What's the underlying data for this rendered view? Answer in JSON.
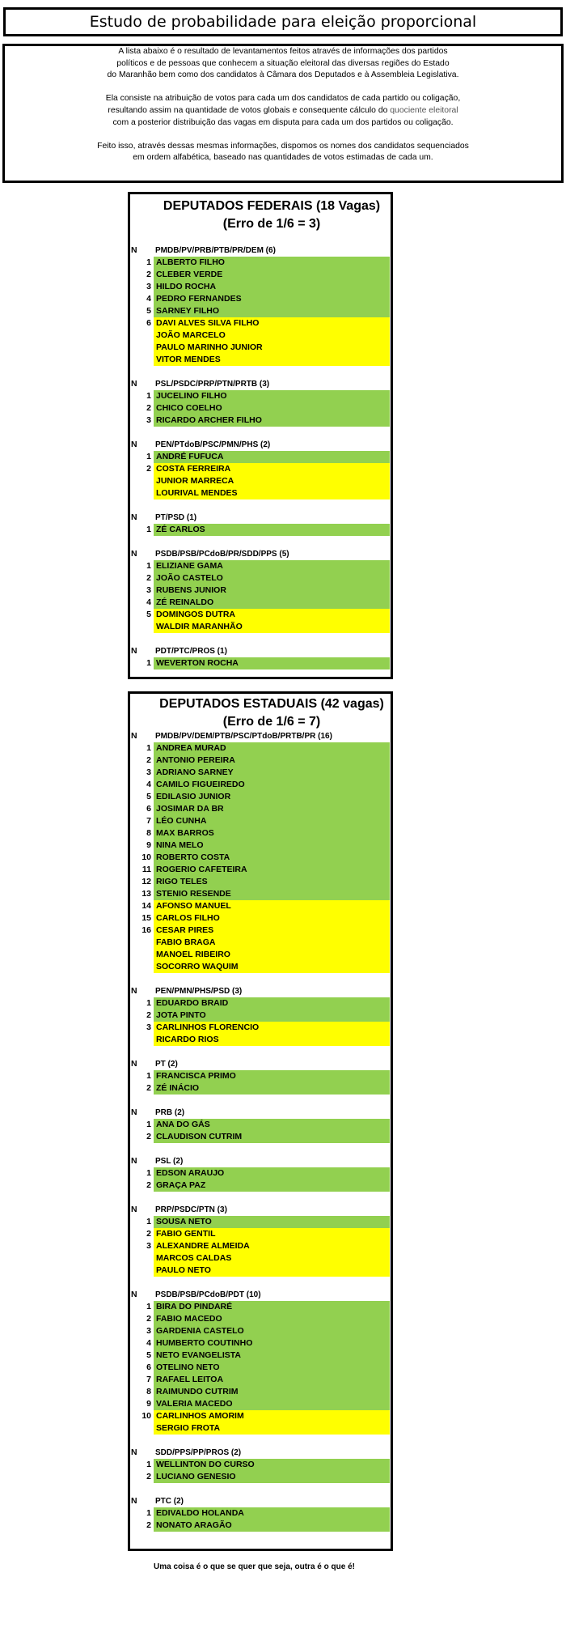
{
  "title": "Estudo de probabilidade para eleição proporcional",
  "intro": {
    "p1": [
      "A lista abaixo é o resultado de levantamentos feitos através de informações dos partidos",
      "políticos e de pessoas que conhecem a situação eleitoral das diversas regiões do Estado",
      "do Maranhão bem como dos candidatos à Câmara dos Deputados e à Assembleia Legislativa."
    ],
    "p2a": "Ela consiste na atribuição de votos para cada um dos candidatos de cada partido ou coligação,",
    "p2b": "resultando assim na quantidade de votos globais e consequente cálculo do ",
    "p2link": "quociente eleitoral",
    "p2c": "com a posterior distribuição das vagas em disputa para cada um dos partidos ou coligação.",
    "p3": [
      "Feito isso, através dessas mesmas informações, dispomos os nomes dos candidatos sequenciados",
      "em ordem alfabética, baseado nas quantidades de votos estimadas de cada um."
    ]
  },
  "colors": {
    "elected": "#92d050",
    "possible": "#ffff00"
  },
  "sections": [
    {
      "title": "DEPUTADOS FEDERAIS (18 Vagas)",
      "subtitle": "(Erro de 1/6 = 3)",
      "groups": [
        {
          "n": "N",
          "party": "PMDB/PV/PRB/PTB/PR/DEM (6)",
          "rows": [
            {
              "num": "1",
              "name": "ALBERTO FILHO",
              "status": "green"
            },
            {
              "num": "2",
              "name": "CLEBER VERDE",
              "status": "green"
            },
            {
              "num": "3",
              "name": "HILDO ROCHA",
              "status": "green"
            },
            {
              "num": "4",
              "name": "PEDRO FERNANDES",
              "status": "green"
            },
            {
              "num": "5",
              "name": "SARNEY FILHO",
              "status": "green"
            },
            {
              "num": "6",
              "name": "DAVI ALVES SILVA FILHO",
              "status": "yellow"
            },
            {
              "num": "",
              "name": "JOÃO MARCELO",
              "status": "yellow"
            },
            {
              "num": "",
              "name": "PAULO MARINHO JUNIOR",
              "status": "yellow"
            },
            {
              "num": "",
              "name": "VITOR MENDES",
              "status": "yellow"
            }
          ]
        },
        {
          "n": "N",
          "party": "PSL/PSDC/PRP/PTN/PRTB (3)",
          "rows": [
            {
              "num": "1",
              "name": "JUCELINO FILHO",
              "status": "green"
            },
            {
              "num": "2",
              "name": "CHICO COELHO",
              "status": "green"
            },
            {
              "num": "3",
              "name": "RICARDO ARCHER FILHO",
              "status": "green"
            }
          ]
        },
        {
          "n": "N",
          "party": "PEN/PTdoB/PSC/PMN/PHS (2)",
          "rows": [
            {
              "num": "1",
              "name": "ANDRÉ FUFUCA",
              "status": "green"
            },
            {
              "num": "2",
              "name": "COSTA FERREIRA",
              "status": "yellow"
            },
            {
              "num": "",
              "name": "JUNIOR MARRECA",
              "status": "yellow"
            },
            {
              "num": "",
              "name": "LOURIVAL MENDES",
              "status": "yellow"
            }
          ]
        },
        {
          "n": "N",
          "party": "PT/PSD (1)",
          "rows": [
            {
              "num": "1",
              "name": "ZÉ CARLOS",
              "status": "green"
            }
          ]
        },
        {
          "n": "N",
          "party": "PSDB/PSB/PCdoB/PR/SDD/PPS (5)",
          "rows": [
            {
              "num": "1",
              "name": "ELIZIANE GAMA",
              "status": "green"
            },
            {
              "num": "2",
              "name": "JOÃO CASTELO",
              "status": "green"
            },
            {
              "num": "3",
              "name": "RUBENS JUNIOR",
              "status": "green"
            },
            {
              "num": "4",
              "name": "ZÉ REINALDO",
              "status": "green"
            },
            {
              "num": "5",
              "name": "DOMINGOS DUTRA",
              "status": "yellow"
            },
            {
              "num": "",
              "name": "WALDIR MARANHÃO",
              "status": "yellow"
            }
          ]
        },
        {
          "n": "N",
          "party": "PDT/PTC/PROS (1)",
          "rows": [
            {
              "num": "1",
              "name": "WEVERTON ROCHA",
              "status": "green"
            }
          ]
        }
      ]
    },
    {
      "title": "DEPUTADOS ESTADUAIS (42 vagas)",
      "subtitle": "(Erro de 1/6 = 7)",
      "groups": [
        {
          "n": "N",
          "party": "PMDB/PV/DEM/PTB/PSC/PTdoB/PRTB/PR (16)",
          "rows": [
            {
              "num": "1",
              "name": "ANDREA MURAD",
              "status": "green"
            },
            {
              "num": "2",
              "name": "ANTONIO PEREIRA",
              "status": "green"
            },
            {
              "num": "3",
              "name": "ADRIANO SARNEY",
              "status": "green"
            },
            {
              "num": "4",
              "name": "CAMILO FIGUEIREDO",
              "status": "green"
            },
            {
              "num": "5",
              "name": "EDILASIO JUNIOR",
              "status": "green"
            },
            {
              "num": "6",
              "name": "JOSIMAR DA BR",
              "status": "green"
            },
            {
              "num": "7",
              "name": "LÉO CUNHA",
              "status": "green"
            },
            {
              "num": "8",
              "name": "MAX BARROS",
              "status": "green"
            },
            {
              "num": "9",
              "name": "NINA MELO",
              "status": "green"
            },
            {
              "num": "10",
              "name": "ROBERTO COSTA",
              "status": "green"
            },
            {
              "num": "11",
              "name": "ROGERIO CAFETEIRA",
              "status": "green"
            },
            {
              "num": "12",
              "name": "RIGO TELES",
              "status": "green"
            },
            {
              "num": "13",
              "name": "STENIO RESENDE",
              "status": "green"
            },
            {
              "num": "14",
              "name": "AFONSO MANUEL",
              "status": "yellow"
            },
            {
              "num": "15",
              "name": "CARLOS FILHO",
              "status": "yellow"
            },
            {
              "num": "16",
              "name": "CESAR PIRES",
              "status": "yellow"
            },
            {
              "num": "",
              "name": "FABIO BRAGA",
              "status": "yellow"
            },
            {
              "num": "",
              "name": "MANOEL RIBEIRO",
              "status": "yellow"
            },
            {
              "num": "",
              "name": "SOCORRO WAQUIM",
              "status": "yellow"
            }
          ]
        },
        {
          "n": "N",
          "party": "PEN/PMN/PHS/PSD (3)",
          "rows": [
            {
              "num": "1",
              "name": "EDUARDO BRAID",
              "status": "green"
            },
            {
              "num": "2",
              "name": "JOTA PINTO",
              "status": "green"
            },
            {
              "num": "3",
              "name": "CARLINHOS FLORENCIO",
              "status": "yellow"
            },
            {
              "num": "",
              "name": "RICARDO RIOS",
              "status": "yellow"
            }
          ]
        },
        {
          "n": "N",
          "party": "PT (2)",
          "rows": [
            {
              "num": "1",
              "name": "FRANCISCA PRIMO",
              "status": "green"
            },
            {
              "num": "2",
              "name": "ZÉ INÁCIO",
              "status": "green"
            }
          ]
        },
        {
          "n": "N",
          "party": "PRB (2)",
          "rows": [
            {
              "num": "1",
              "name": "ANA DO GÁS",
              "status": "green"
            },
            {
              "num": "2",
              "name": "CLAUDISON CUTRIM",
              "status": "green"
            }
          ]
        },
        {
          "n": "N",
          "party": "PSL (2)",
          "rows": [
            {
              "num": "1",
              "name": "EDSON ARAUJO",
              "status": "green"
            },
            {
              "num": "2",
              "name": "GRAÇA PAZ",
              "status": "green"
            }
          ]
        },
        {
          "n": "N",
          "party": "PRP/PSDC/PTN (3)",
          "rows": [
            {
              "num": "1",
              "name": "SOUSA NETO",
              "status": "green"
            },
            {
              "num": "2",
              "name": "FABIO GENTIL",
              "status": "yellow"
            },
            {
              "num": "3",
              "name": "ALEXANDRE ALMEIDA",
              "status": "yellow"
            },
            {
              "num": "",
              "name": "MARCOS CALDAS",
              "status": "yellow"
            },
            {
              "num": "",
              "name": "PAULO NETO",
              "status": "yellow"
            }
          ]
        },
        {
          "n": "N",
          "party": "PSDB/PSB/PCdoB/PDT (10)",
          "rows": [
            {
              "num": "1",
              "name": "BIRA DO PINDARÉ",
              "status": "green"
            },
            {
              "num": "2",
              "name": "FABIO MACEDO",
              "status": "green"
            },
            {
              "num": "3",
              "name": "GARDENIA CASTELO",
              "status": "green"
            },
            {
              "num": "4",
              "name": "HUMBERTO COUTINHO",
              "status": "green"
            },
            {
              "num": "5",
              "name": "NETO EVANGELISTA",
              "status": "green"
            },
            {
              "num": "6",
              "name": "OTELINO NETO",
              "status": "green"
            },
            {
              "num": "7",
              "name": "RAFAEL LEITOA",
              "status": "green"
            },
            {
              "num": "8",
              "name": "RAIMUNDO CUTRIM",
              "status": "green"
            },
            {
              "num": "9",
              "name": "VALERIA MACEDO",
              "status": "green"
            },
            {
              "num": "10",
              "name": "CARLINHOS AMORIM",
              "status": "yellow"
            },
            {
              "num": "",
              "name": "SERGIO FROTA",
              "status": "yellow"
            }
          ]
        },
        {
          "n": "N",
          "party": "SDD/PPS/PP/PROS (2)",
          "rows": [
            {
              "num": "1",
              "name": "WELLINTON DO CURSO",
              "status": "green"
            },
            {
              "num": "2",
              "name": "LUCIANO GENESIO",
              "status": "green"
            }
          ]
        },
        {
          "n": "N",
          "party": "PTC (2)",
          "rows": [
            {
              "num": "1",
              "name": "EDIVALDO HOLANDA",
              "status": "green"
            },
            {
              "num": "2",
              "name": "NONATO ARAGÃO",
              "status": "green"
            }
          ]
        }
      ]
    }
  ],
  "footer": "Uma coisa é o que se quer que seja, outra é o que é!"
}
